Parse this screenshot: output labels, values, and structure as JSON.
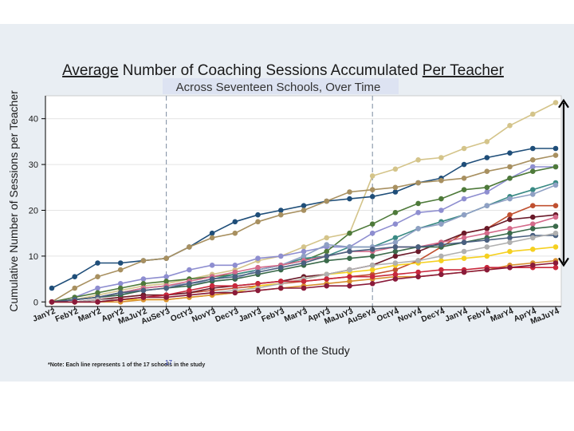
{
  "chart_data": {
    "type": "line",
    "title_parts": [
      "Average",
      " Number of Coaching Sessions Accumulated ",
      "Per Teacher"
    ],
    "subtitle": "Across Seventeen Schools, Over Time",
    "xlabel": "Month of the Study",
    "ylabel": "Cumulative Number of Sessions per Teacher",
    "note": "*Note: Each line represents 1 of the 17 schools in the study",
    "note_badge": "17",
    "ylim": [
      -1,
      45
    ],
    "yticks": [
      0,
      10,
      20,
      30,
      40
    ],
    "grid": true,
    "categories": [
      "JanY2",
      "FebY2",
      "MarY2",
      "AprY2",
      "MaJuY2",
      "AuSeY3",
      "OctY3",
      "NovY3",
      "DecY3",
      "JanY3",
      "FebY3",
      "MarY3",
      "AprY3",
      "MaJuY3",
      "AuSeY4",
      "OctY4",
      "NovY4",
      "DecY4",
      "JanY4",
      "FebY4",
      "MarY4",
      "AprY4",
      "MaJuY4"
    ],
    "reference_lines_at": [
      "AuSeY3",
      "AuSeY4"
    ],
    "range_arrow": [
      8,
      44
    ],
    "series": [
      {
        "color": "#d4c48a",
        "values": [
          0,
          0.5,
          1.5,
          2.5,
          3.5,
          4,
          5,
          6,
          7,
          9,
          10,
          12,
          14,
          15,
          27.5,
          29,
          31,
          31.5,
          33.5,
          35,
          38.5,
          41,
          43.5
        ]
      },
      {
        "color": "#1f4e79",
        "values": [
          3,
          5.5,
          8.5,
          8.5,
          9,
          9.5,
          12,
          15,
          17.5,
          19,
          20,
          21,
          22,
          22.5,
          23,
          24,
          26,
          27,
          30,
          31.5,
          32.5,
          33.5,
          33.5
        ]
      },
      {
        "color": "#a89060",
        "values": [
          0,
          3,
          5.5,
          7,
          9,
          9.5,
          12,
          14,
          15,
          17.5,
          19,
          20,
          22,
          24,
          24.5,
          25,
          26,
          26.5,
          27,
          28.5,
          29.5,
          31,
          32
        ]
      },
      {
        "color": "#8e8ed0",
        "values": [
          0,
          1,
          3,
          4,
          5,
          5.5,
          7,
          8,
          8,
          9.5,
          10,
          11,
          12,
          12,
          15,
          17,
          19.5,
          20,
          22.5,
          24,
          27,
          29.5,
          29.5
        ]
      },
      {
        "color": "#4e7a3a",
        "values": [
          0,
          1,
          2,
          3,
          4,
          4.5,
          5,
          5.5,
          6,
          7,
          8,
          9,
          11,
          15,
          17,
          19.5,
          21.5,
          22.5,
          24.5,
          25,
          27,
          28.5,
          29.5
        ]
      },
      {
        "color": "#3a8a84",
        "values": [
          0,
          0.5,
          1,
          2,
          3,
          3.5,
          4,
          5,
          6,
          7,
          8,
          9.5,
          10,
          12,
          12,
          14,
          16,
          17.5,
          19,
          21,
          23,
          24.5,
          26
        ]
      },
      {
        "color": "#8fa0c4",
        "values": [
          0,
          0.5,
          1,
          1.5,
          3,
          3.5,
          4,
          4.5,
          5,
          7,
          8,
          10,
          12.5,
          12,
          12,
          13,
          16,
          17,
          19,
          21,
          22.5,
          23.5,
          25.5
        ]
      },
      {
        "color": "#c05030",
        "values": [
          0,
          0,
          0.5,
          1,
          1.5,
          1.5,
          2,
          2.5,
          3,
          3.5,
          4,
          4.5,
          5,
          5.5,
          6,
          7,
          9,
          12,
          15,
          16,
          19,
          21,
          21
        ]
      },
      {
        "color": "#6a1a2a",
        "values": [
          0,
          0,
          0.5,
          1,
          1.5,
          1.5,
          2,
          3,
          3.5,
          4,
          4.5,
          5.5,
          6,
          7,
          8,
          10,
          11,
          13,
          15,
          16,
          18,
          18.5,
          19
        ]
      },
      {
        "color": "#d46a8a",
        "values": [
          0,
          0.5,
          1,
          2,
          3,
          3.5,
          4.5,
          5.5,
          6.5,
          7.5,
          8,
          9,
          10,
          11,
          11,
          12,
          12,
          13,
          14,
          15,
          16,
          17,
          18.5
        ]
      },
      {
        "color": "#3a6a4a",
        "values": [
          0,
          0.5,
          1,
          1.5,
          2.5,
          3,
          3.5,
          4.5,
          5,
          6,
          7,
          8,
          9,
          9.5,
          10,
          11,
          12,
          12,
          13,
          14,
          15,
          16,
          16.5
        ]
      },
      {
        "color": "#4a6080",
        "values": [
          0,
          0.5,
          1,
          2,
          2.5,
          3,
          4,
          5,
          5.5,
          6.5,
          7.5,
          8.5,
          10,
          11,
          11.5,
          12,
          12,
          12.5,
          13,
          13.5,
          14,
          14.5,
          14.5
        ]
      },
      {
        "color": "#f5d020",
        "values": [
          0,
          0,
          0,
          0.5,
          0.5,
          0.5,
          1,
          1.5,
          2,
          3.5,
          4,
          5,
          6,
          6.5,
          7,
          8,
          8.5,
          9,
          9.5,
          10,
          11,
          11.5,
          12
        ]
      },
      {
        "color": "#b0b0b0",
        "values": [
          0,
          0,
          0.5,
          0.5,
          1,
          1,
          1.5,
          2,
          2.5,
          3,
          4,
          5,
          6,
          7,
          8,
          8.5,
          9,
          10,
          11,
          12,
          13,
          14,
          15
        ]
      },
      {
        "color": "#d89030",
        "values": [
          0,
          0,
          0,
          0,
          0.5,
          0.5,
          1,
          1.5,
          2,
          2.5,
          3,
          3.5,
          4,
          4.5,
          5,
          5.5,
          5.5,
          6,
          6.5,
          7,
          8,
          8.5,
          9
        ]
      },
      {
        "color": "#c8283c",
        "values": [
          0,
          0,
          0,
          0.5,
          1,
          1.5,
          2.5,
          3.5,
          3.5,
          4,
          4.5,
          4.5,
          5,
          5.5,
          5.5,
          6,
          6.5,
          7,
          7,
          7.5,
          7.5,
          7.5,
          7.5
        ]
      },
      {
        "color": "#8a1a3a",
        "values": [
          0,
          0,
          0,
          0.5,
          1,
          1,
          1.5,
          2,
          2,
          2.5,
          3,
          3,
          3.5,
          3.5,
          4,
          5,
          5.5,
          6,
          6.5,
          7,
          7.5,
          8,
          8.5
        ]
      }
    ]
  }
}
